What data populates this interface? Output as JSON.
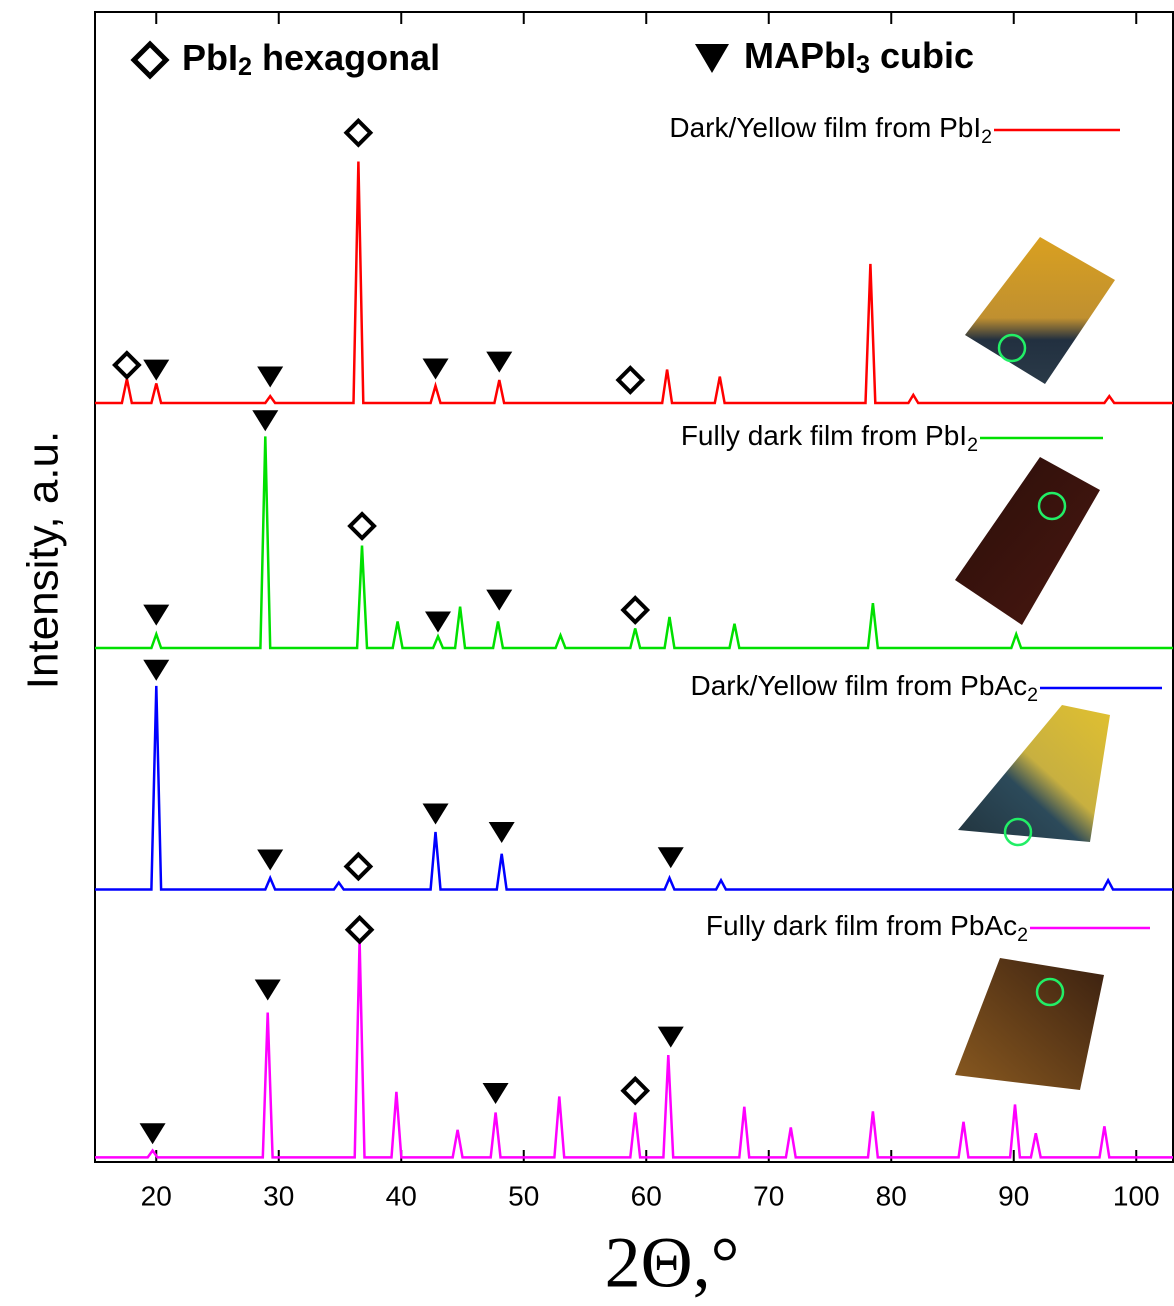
{
  "chart_data": {
    "type": "line",
    "xlabel": "2Θ,°",
    "ylabel": "Intensity, a.u.",
    "xlim": [
      15,
      103
    ],
    "ylim": [
      0,
      100
    ],
    "xticks": [
      20,
      30,
      40,
      50,
      60,
      70,
      80,
      90,
      100
    ],
    "series": [
      {
        "name": "Dark/Yellow film from PbI2",
        "color": "#ff0000",
        "x": [
          15,
          17.2,
          17.6,
          18,
          19.6,
          20,
          20.4,
          28.9,
          29.3,
          29.7,
          36.1,
          36.5,
          36.9,
          42.4,
          42.8,
          43.2,
          47.6,
          48,
          48.4,
          61.3,
          61.7,
          62.1,
          65.6,
          66,
          66.4,
          77.9,
          78.3,
          78.7,
          81.4,
          81.8,
          82.2,
          97.4,
          97.8,
          98.2,
          103
        ],
        "values": [
          66,
          66,
          68.1,
          66,
          66,
          67.7,
          66,
          66,
          66.6,
          66,
          66,
          87,
          66,
          66,
          67.5,
          66,
          66,
          68,
          66,
          66,
          68.9,
          66,
          66,
          68.3,
          66,
          66,
          78.1,
          66,
          66,
          66.7,
          66,
          66,
          66.6,
          66,
          66
        ]
      },
      {
        "name": "Fully dark film from PbI2",
        "color": "#00e000",
        "x": [
          15,
          19.6,
          20,
          20.4,
          28.5,
          28.9,
          29.3,
          36.4,
          36.8,
          37.2,
          39.3,
          39.7,
          40.1,
          42.6,
          43,
          43.4,
          44.4,
          44.8,
          45.2,
          47.5,
          47.9,
          48.3,
          52.6,
          53,
          53.4,
          58.7,
          59.1,
          59.5,
          61.5,
          61.9,
          62.3,
          66.8,
          67.2,
          67.6,
          78.1,
          78.5,
          78.9,
          89.8,
          90.2,
          90.6,
          103
        ],
        "values": [
          44.7,
          44.7,
          45.9,
          44.7,
          44.7,
          63.1,
          44.7,
          44.7,
          53.6,
          44.7,
          44.7,
          47.0,
          44.7,
          44.7,
          45.7,
          44.7,
          44.7,
          48.3,
          44.7,
          44.7,
          47.0,
          44.7,
          44.7,
          45.8,
          44.7,
          44.7,
          46.4,
          44.7,
          44.7,
          47.4,
          44.7,
          44.7,
          46.8,
          44.7,
          44.7,
          48.6,
          44.7,
          44.7,
          45.9,
          44.7,
          44.7
        ]
      },
      {
        "name": "Dark/Yellow film from PbAc2",
        "color": "#0000ff",
        "x": [
          15,
          19.6,
          20,
          20.4,
          28.9,
          29.3,
          29.7,
          34.5,
          34.9,
          35.3,
          42.4,
          42.8,
          43.2,
          47.8,
          48.2,
          48.6,
          61.5,
          61.9,
          62.3,
          65.7,
          66.1,
          66.5,
          97.3,
          97.7,
          98.1,
          103
        ],
        "values": [
          23.7,
          23.7,
          41.4,
          23.7,
          23.7,
          24.7,
          23.7,
          23.7,
          24.3,
          23.7,
          23.7,
          28.7,
          23.7,
          23.7,
          26.8,
          23.7,
          23.7,
          24.7,
          23.7,
          23.7,
          24.5,
          23.7,
          23.7,
          24.5,
          23.7,
          23.7
        ]
      },
      {
        "name": "Fully dark film from PbAc2",
        "color": "#ff00ff",
        "x": [
          15,
          19.3,
          19.7,
          20.1,
          28.7,
          29.1,
          29.5,
          36.2,
          36.6,
          37,
          39.2,
          39.6,
          40,
          44.2,
          44.6,
          45,
          47.3,
          47.7,
          48.1,
          52.5,
          52.9,
          53.3,
          58.7,
          59.1,
          59.5,
          61.4,
          61.8,
          62.2,
          67.6,
          68,
          68.4,
          71.4,
          71.8,
          72.2,
          78.1,
          78.5,
          78.9,
          85.5,
          85.9,
          86.3,
          89.7,
          90.1,
          90.5,
          91.4,
          91.8,
          92.2,
          97,
          97.4,
          97.8,
          103
        ],
        "values": [
          0.4,
          0.4,
          1.0,
          0.4,
          0.4,
          13.0,
          0.4,
          0.4,
          19.3,
          0.4,
          0.4,
          6.1,
          0.4,
          0.4,
          2.8,
          0.4,
          0.4,
          4.3,
          0.4,
          0.4,
          5.7,
          0.4,
          0.4,
          4.3,
          0.4,
          0.4,
          9.3,
          0.4,
          0.4,
          4.8,
          0.4,
          0.4,
          3.0,
          0.4,
          0.4,
          4.4,
          0.4,
          0.4,
          3.5,
          0.4,
          0.4,
          5.0,
          0.4,
          0.4,
          2.5,
          0.4,
          0.4,
          3.1,
          0.4,
          0.4
        ]
      }
    ],
    "marker_legend": [
      {
        "shape": "diamond",
        "label": "PbI2 hexagonal"
      },
      {
        "shape": "triangle",
        "label": "MAPbI3 cubic"
      }
    ],
    "markers": [
      {
        "shape": "diamond",
        "x": 17.6,
        "y": 69.3
      },
      {
        "shape": "triangle",
        "x": 20,
        "y": 68.9
      },
      {
        "shape": "triangle",
        "x": 29.3,
        "y": 68.3
      },
      {
        "shape": "diamond",
        "x": 36.5,
        "y": 89.5
      },
      {
        "shape": "triangle",
        "x": 42.8,
        "y": 69.0
      },
      {
        "shape": "triangle",
        "x": 48,
        "y": 69.6
      },
      {
        "shape": "diamond",
        "x": 58.7,
        "y": 68.0
      },
      {
        "shape": "triangle",
        "x": 20,
        "y": 47.6
      },
      {
        "shape": "triangle",
        "x": 28.9,
        "y": 64.5
      },
      {
        "shape": "diamond",
        "x": 36.8,
        "y": 55.3
      },
      {
        "shape": "triangle",
        "x": 43,
        "y": 47.0
      },
      {
        "shape": "triangle",
        "x": 48,
        "y": 48.9
      },
      {
        "shape": "diamond",
        "x": 59.1,
        "y": 48.0
      },
      {
        "shape": "triangle",
        "x": 20,
        "y": 42.8
      },
      {
        "shape": "triangle",
        "x": 29.3,
        "y": 26.3
      },
      {
        "shape": "diamond",
        "x": 36.5,
        "y": 25.7
      },
      {
        "shape": "triangle",
        "x": 42.8,
        "y": 30.3
      },
      {
        "shape": "triangle",
        "x": 48.2,
        "y": 28.7
      },
      {
        "shape": "triangle",
        "x": 62,
        "y": 26.5
      },
      {
        "shape": "triangle",
        "x": 19.7,
        "y": 2.5
      },
      {
        "shape": "triangle",
        "x": 29.1,
        "y": 15.0
      },
      {
        "shape": "diamond",
        "x": 36.6,
        "y": 20.2
      },
      {
        "shape": "triangle",
        "x": 47.7,
        "y": 6.0
      },
      {
        "shape": "diamond",
        "x": 59.1,
        "y": 6.2
      },
      {
        "shape": "triangle",
        "x": 62,
        "y": 10.9
      }
    ]
  }
}
